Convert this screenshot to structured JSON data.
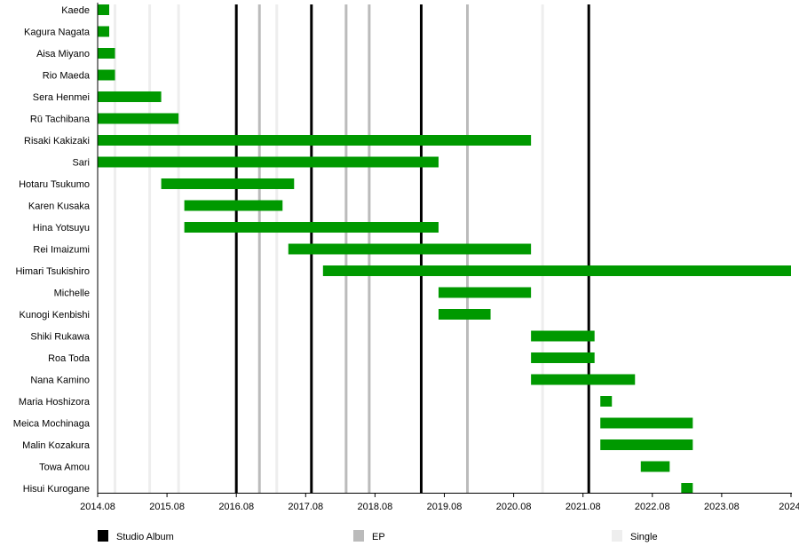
{
  "chart_data": {
    "type": "timeline",
    "x_axis": {
      "range": [
        "2014-08",
        "2024-08"
      ],
      "tick_labels": [
        "2014.08",
        "2015.08",
        "2016.08",
        "2017.08",
        "2018.08",
        "2019.08",
        "2020.08",
        "2021.08",
        "2022.08",
        "2023.08",
        "2024."
      ]
    },
    "bar_color": "#009900",
    "members": [
      {
        "name": "Kaede",
        "start": "2014-08",
        "end": "2014-10"
      },
      {
        "name": "Kagura Nagata",
        "start": "2014-08",
        "end": "2014-10"
      },
      {
        "name": "Aisa Miyano",
        "start": "2014-08",
        "end": "2014-11"
      },
      {
        "name": "Rio Maeda",
        "start": "2014-08",
        "end": "2014-11"
      },
      {
        "name": "Sera Henmei",
        "start": "2014-08",
        "end": "2015-07"
      },
      {
        "name": "Rū Tachibana",
        "start": "2014-08",
        "end": "2015-10"
      },
      {
        "name": "Risaki Kakizaki",
        "start": "2014-08",
        "end": "2020-11"
      },
      {
        "name": "Sari",
        "start": "2014-08",
        "end": "2019-07"
      },
      {
        "name": "Hotaru Tsukumo",
        "start": "2015-07",
        "end": "2017-06"
      },
      {
        "name": "Karen Kusaka",
        "start": "2015-11",
        "end": "2017-04"
      },
      {
        "name": "Hina Yotsuyu",
        "start": "2015-11",
        "end": "2019-07"
      },
      {
        "name": "Rei Imaizumi",
        "start": "2017-05",
        "end": "2020-11"
      },
      {
        "name": "Himari Tsukishiro",
        "start": "2017-11",
        "end": "2024-08"
      },
      {
        "name": "Michelle",
        "start": "2019-07",
        "end": "2020-11"
      },
      {
        "name": "Kunogi Kenbishi",
        "start": "2019-07",
        "end": "2020-04"
      },
      {
        "name": "Shiki Rukawa",
        "start": "2020-11",
        "end": "2021-10"
      },
      {
        "name": "Roa Toda",
        "start": "2020-11",
        "end": "2021-10"
      },
      {
        "name": "Nana Kamino",
        "start": "2020-11",
        "end": "2022-05"
      },
      {
        "name": "Maria Hoshizora",
        "start": "2021-11",
        "end": "2022-01"
      },
      {
        "name": "Meica Mochinaga",
        "start": "2021-11",
        "end": "2023-03"
      },
      {
        "name": "Malin Kozakura",
        "start": "2021-11",
        "end": "2023-03"
      },
      {
        "name": "Towa Amou",
        "start": "2022-06",
        "end": "2022-11"
      },
      {
        "name": "Hisui Kurogane",
        "start": "2023-01",
        "end": "2023-03"
      }
    ],
    "releases": [
      {
        "type": "Single",
        "date": "2014-11"
      },
      {
        "type": "Single",
        "date": "2015-05"
      },
      {
        "type": "Single",
        "date": "2015-10"
      },
      {
        "type": "Studio Album",
        "date": "2016-08"
      },
      {
        "type": "EP",
        "date": "2016-12"
      },
      {
        "type": "Single",
        "date": "2017-03"
      },
      {
        "type": "Studio Album",
        "date": "2017-09"
      },
      {
        "type": "EP",
        "date": "2018-03"
      },
      {
        "type": "EP",
        "date": "2018-07"
      },
      {
        "type": "Studio Album",
        "date": "2019-04"
      },
      {
        "type": "EP",
        "date": "2019-12"
      },
      {
        "type": "Single",
        "date": "2021-01"
      },
      {
        "type": "Studio Album",
        "date": "2021-09"
      }
    ],
    "legend": [
      {
        "label": "Studio Album",
        "color": "#000000"
      },
      {
        "label": "EP",
        "color": "#bbbbbb"
      },
      {
        "label": "Single",
        "color": "#eeeeee"
      }
    ],
    "legend_position": "bottom",
    "grid": false
  }
}
